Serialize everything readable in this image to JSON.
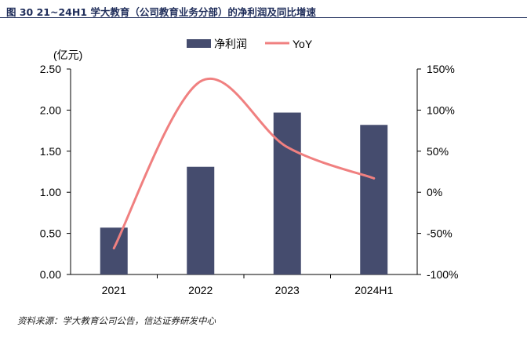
{
  "figure": {
    "title": "图 30   21~24H1 学大教育（公司教育业务分部）的净利润及同比增速",
    "source": "资料来源：学大教育公司公告，信达证券研发中心"
  },
  "chart_data": {
    "type": "bar+line",
    "categories": [
      "2021",
      "2022",
      "2023",
      "2024H1"
    ],
    "series": [
      {
        "name": "净利润",
        "type": "bar",
        "axis": "left",
        "values": [
          0.57,
          1.31,
          1.97,
          1.82
        ]
      },
      {
        "name": "YoY",
        "type": "line",
        "axis": "right",
        "values": [
          -0.68,
          1.35,
          0.55,
          0.17
        ]
      }
    ],
    "left_axis": {
      "label": "(亿元)",
      "ylim": [
        0,
        2.5
      ],
      "ticks": [
        "0.00",
        "0.50",
        "1.00",
        "1.50",
        "2.00",
        "2.50"
      ],
      "tick_values": [
        0,
        0.5,
        1.0,
        1.5,
        2.0,
        2.5
      ]
    },
    "right_axis": {
      "label": "",
      "ylim": [
        -1.0,
        1.5
      ],
      "ticks": [
        "-100%",
        "-50%",
        "0%",
        "50%",
        "100%",
        "150%"
      ],
      "tick_values": [
        -1.0,
        -0.5,
        0,
        0.5,
        1.0,
        1.5
      ]
    },
    "legend_position": "top-center",
    "grid": false,
    "colors": {
      "bar": "#454c6e",
      "line": "#f08080",
      "axis": "#000000"
    }
  }
}
